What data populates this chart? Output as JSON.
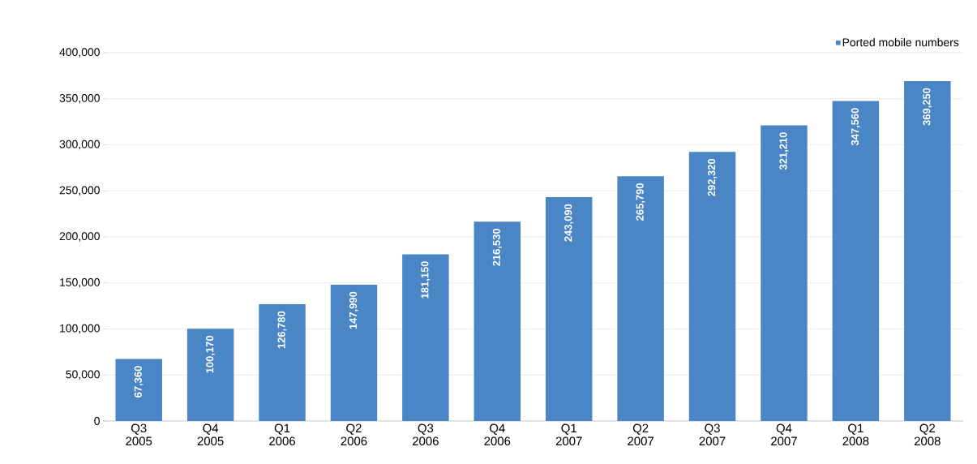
{
  "chart_data": {
    "type": "bar",
    "categories": [
      "Q3 2005",
      "Q4 2005",
      "Q1 2006",
      "Q2 2006",
      "Q3 2006",
      "Q4 2006",
      "Q1 2007",
      "Q2 2007",
      "Q3 2007",
      "Q4 2007",
      "Q1 2008",
      "Q2 2008"
    ],
    "series": [
      {
        "name": "Ported mobile numbers",
        "color": "#4a86c5",
        "values": [
          67360,
          100170,
          126780,
          147990,
          181150,
          216530,
          243090,
          265790,
          292320,
          321210,
          347560,
          369250
        ],
        "value_labels": [
          "67,360",
          "100,170",
          "126,780",
          "147,990",
          "181,150",
          "216,530",
          "243,090",
          "265,790",
          "292,320",
          "321,210",
          "347,560",
          "369,250"
        ]
      }
    ],
    "ylim": [
      0,
      400000
    ],
    "yticks": [
      {
        "value": 0,
        "label": "0"
      },
      {
        "value": 50000,
        "label": "50,000"
      },
      {
        "value": 100000,
        "label": "100,000"
      },
      {
        "value": 150000,
        "label": "150,000"
      },
      {
        "value": 200000,
        "label": "200,000"
      },
      {
        "value": 250000,
        "label": "250,000"
      },
      {
        "value": 300000,
        "label": "300,000"
      },
      {
        "value": 350000,
        "label": "350,000"
      },
      {
        "value": 400000,
        "label": "400,000"
      }
    ],
    "grid": "y",
    "legend": "top right"
  }
}
